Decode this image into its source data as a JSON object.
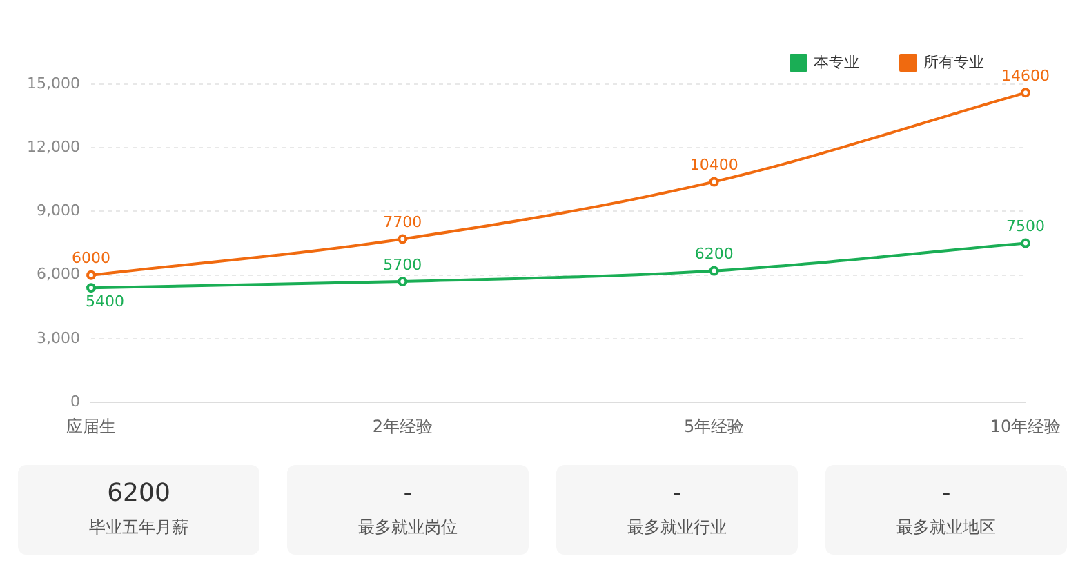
{
  "chart_data": {
    "type": "line",
    "categories": [
      "应届生",
      "2年经验",
      "5年经验",
      "10年经验"
    ],
    "series": [
      {
        "name": "本专业",
        "color": "#1aae55",
        "values": [
          5400,
          5700,
          6200,
          7500
        ]
      },
      {
        "name": "所有专业",
        "color": "#f06a0f",
        "values": [
          6000,
          7700,
          10400,
          14600
        ]
      }
    ],
    "ylim": [
      0,
      15000
    ],
    "yticks": [
      0,
      {
        "value": 3000,
        "label": "3,000"
      },
      {
        "value": 6000,
        "label": "6,000"
      },
      {
        "value": 9000,
        "label": "9,000"
      },
      {
        "value": 12000,
        "label": "12,000"
      },
      {
        "value": 15000,
        "label": "15,000"
      }
    ],
    "grid": "y",
    "legend": "top right",
    "marker": "circle",
    "line_style": "solid",
    "data_labels": true,
    "annotations": [
      "6200",
      "毕业五年月薪",
      "-",
      "最多就业岗位",
      "-",
      "最多就业行业",
      "-",
      "最多就业地区"
    ]
  }
}
